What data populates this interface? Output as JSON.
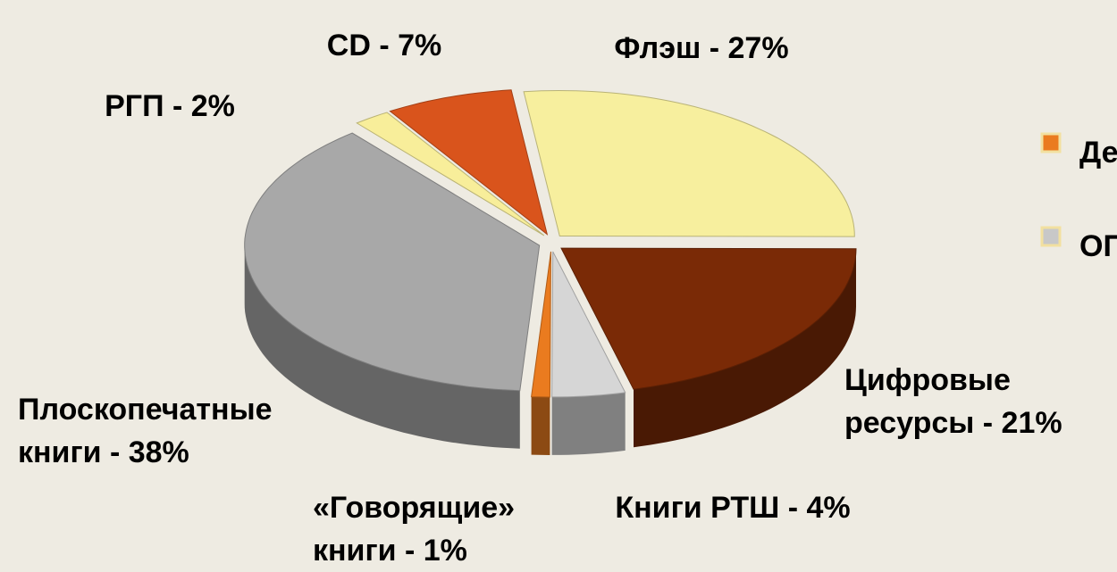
{
  "chart_data": {
    "type": "pie3d",
    "labels": [
      [
        "Флэш - 27%"
      ],
      [
        "Цифровые",
        "ресурсы - 21%"
      ],
      [
        "Книги РТШ - 4%"
      ],
      [
        "«Говорящие»",
        "книги - 1%"
      ],
      [
        "Плоскопечатные",
        "книги - 38%"
      ],
      [
        "РГП - 2%"
      ],
      [
        "CD - 7%"
      ]
    ],
    "values": [
      27,
      21,
      4,
      1,
      38,
      2,
      7
    ],
    "colors": [
      "#f7ef9e",
      "#7a2a06",
      "#d6d6d6",
      "#ea7b1f",
      "#a8a8a8",
      "#f8ee9a",
      "#d9541c"
    ],
    "legend": [
      {
        "label": "Де",
        "color": "#ea7b1f"
      },
      {
        "label": "ОП",
        "color": "#c8c8c8"
      }
    ]
  }
}
